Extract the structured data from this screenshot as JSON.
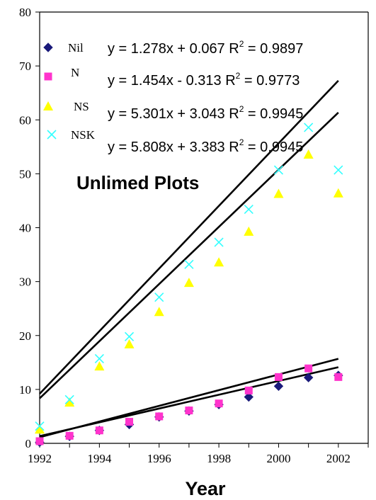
{
  "chart_data": {
    "type": "scatter",
    "xlabel": "Year",
    "ylabel": "",
    "xlim": [
      1992,
      2003
    ],
    "ylim": [
      0,
      80
    ],
    "x_ticks": [
      "1992",
      "1994",
      "1996",
      "1998",
      "2000",
      "2002"
    ],
    "y_ticks": [
      "0",
      "10",
      "20",
      "30",
      "40",
      "50",
      "60",
      "70",
      "80"
    ],
    "grid": false,
    "legend_position": "top-left",
    "annotation": "Unlimed Plots",
    "series": [
      {
        "name": "Nil",
        "marker": "diamond",
        "color": "#1a1a7a",
        "x": [
          1992,
          1993,
          1994,
          1995,
          1996,
          1997,
          1998,
          1999,
          2000,
          2001,
          2002
        ],
        "y": [
          0.2,
          1.3,
          2.4,
          3.5,
          4.9,
          6.0,
          7.2,
          8.6,
          10.6,
          12.2,
          12.6
        ],
        "trendline": {
          "equation": "y = 1.278x + 0.067",
          "r2": "0.9897",
          "slope": 1.278,
          "intercept": 0.067
        }
      },
      {
        "name": "N",
        "marker": "square",
        "color": "#ff33cc",
        "x": [
          1992,
          1993,
          1994,
          1995,
          1996,
          1997,
          1998,
          1999,
          2000,
          2001,
          2002
        ],
        "y": [
          0.4,
          1.4,
          2.4,
          4.0,
          5.0,
          6.1,
          7.4,
          9.8,
          12.3,
          13.9,
          12.3
        ],
        "trendline": {
          "equation": "y = 1.454x - 0.313",
          "r2": "0.9773",
          "slope": 1.454,
          "intercept": -0.313
        }
      },
      {
        "name": "NS",
        "marker": "triangle",
        "color": "#ffff00",
        "x": [
          1992,
          1993,
          1994,
          1995,
          1996,
          1997,
          1998,
          1999,
          2000,
          2001,
          2002
        ],
        "y": [
          2.6,
          7.6,
          14.3,
          18.4,
          24.4,
          29.8,
          33.6,
          39.3,
          46.3,
          53.6,
          46.4
        ],
        "trendline": {
          "equation": "y = 5.301x + 3.043",
          "r2": "0.9945",
          "slope": 5.301,
          "intercept": 3.043
        }
      },
      {
        "name": "NSK",
        "marker": "x",
        "color": "#33ffff",
        "x": [
          1992,
          1993,
          1994,
          1995,
          1996,
          1997,
          1998,
          1999,
          2000,
          2001,
          2002
        ],
        "y": [
          3.2,
          8.1,
          15.7,
          19.8,
          27.1,
          33.2,
          37.3,
          43.4,
          50.7,
          58.6,
          50.7
        ],
        "trendline": {
          "equation": "y = 5.808x + 3.383",
          "r2": "0.9945",
          "slope": 5.808,
          "intercept": 3.383
        }
      }
    ]
  }
}
